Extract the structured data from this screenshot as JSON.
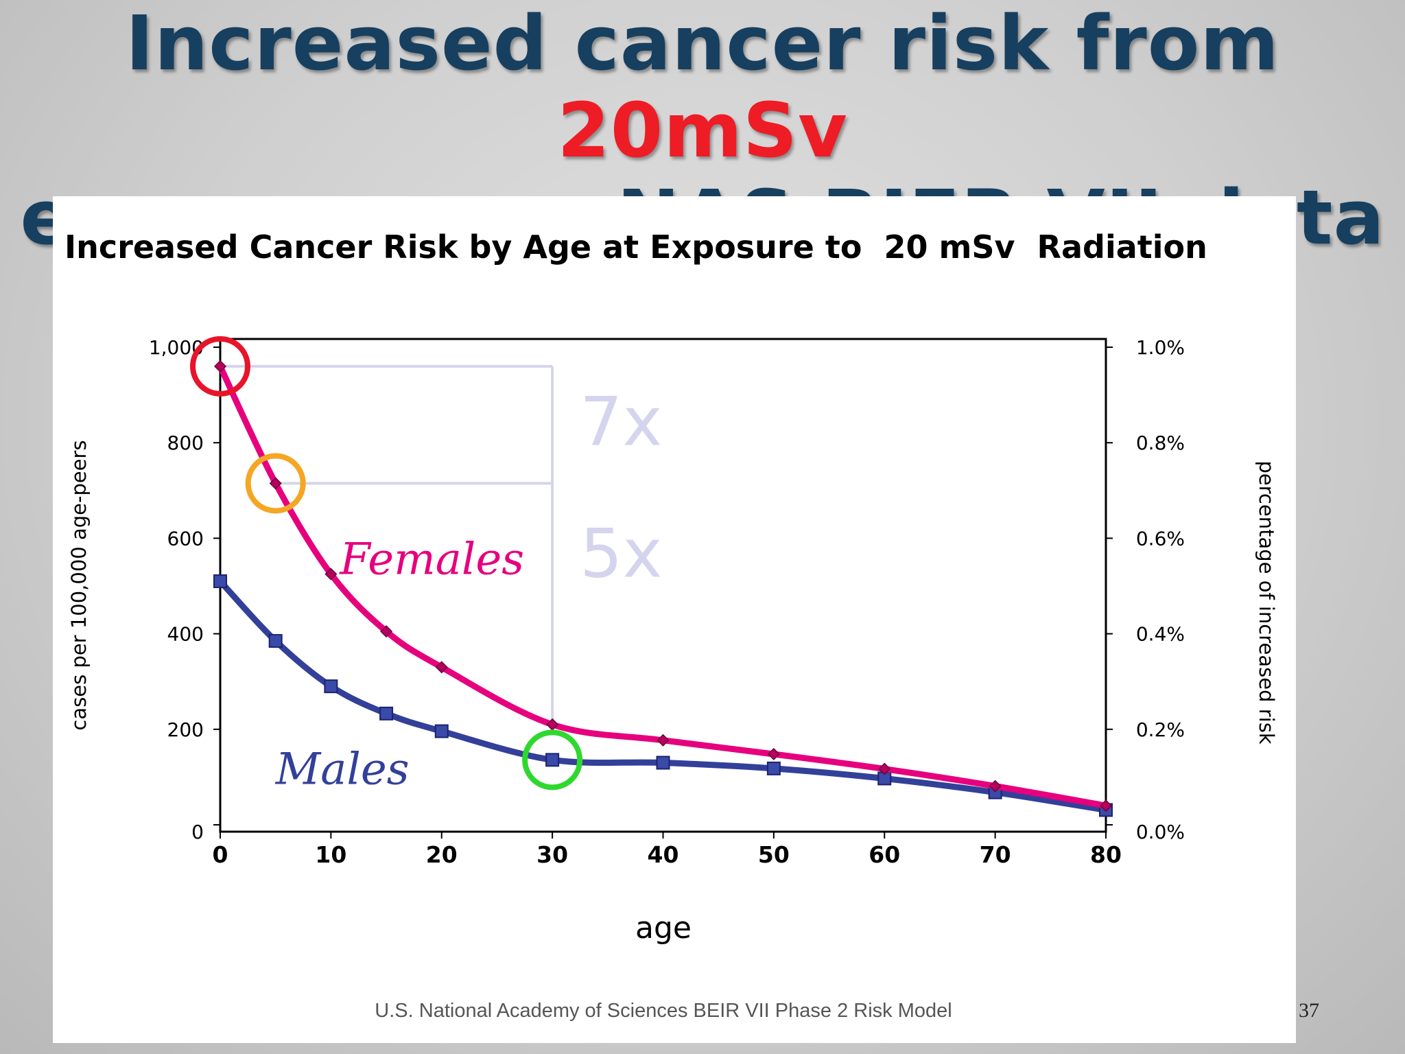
{
  "slide": {
    "title_line1_prefix": "Increased cancer risk from ",
    "title_line1_highlight": "20mSv",
    "title_line2": "exposure per NAS BIER VII data",
    "page_number": "37"
  },
  "chart_data": {
    "type": "line",
    "title": "Increased Cancer Risk by Age at Exposure to  20 mSv  Radiation",
    "xlabel": "age",
    "ylabel": "cases per 100,000 age-peers",
    "ylabel_right": "percentage of increased risk",
    "source": "U.S. National Academy of Sciences BEIR VII Phase 2 Risk Model",
    "xlim": [
      0,
      80
    ],
    "ylim": [
      0,
      1000
    ],
    "x_ticks": [
      "0",
      "10",
      "20",
      "30",
      "40",
      "50",
      "60",
      "70",
      "80"
    ],
    "y_ticks": [
      "0",
      "200",
      "400",
      "600",
      "800",
      "1,000"
    ],
    "y_ticks_right": [
      "0.0%",
      "0.2%",
      "0.4%",
      "0.6%",
      "0.8%",
      "1.0%"
    ],
    "series": [
      {
        "name": "Females",
        "color": "#e6007e",
        "marker": "diamond",
        "x": [
          0,
          5,
          10,
          15,
          20,
          30,
          40,
          50,
          60,
          70,
          80
        ],
        "values": [
          960,
          715,
          525,
          405,
          330,
          210,
          177,
          148,
          117,
          81,
          40
        ]
      },
      {
        "name": "Males",
        "color": "#33409a",
        "marker": "square",
        "x": [
          0,
          5,
          10,
          15,
          20,
          30,
          40,
          50,
          60,
          70,
          80
        ],
        "values": [
          510,
          385,
          290,
          233,
          196,
          136,
          130,
          118,
          97,
          68,
          31
        ]
      }
    ],
    "annotations": [
      {
        "text": "7x",
        "color": "#d4d4ee"
      },
      {
        "text": "5x",
        "color": "#d4d4ee"
      }
    ],
    "highlight_circles": [
      {
        "series": "Females",
        "x": 0,
        "y": 960,
        "color": "#e8142a"
      },
      {
        "series": "Females",
        "x": 5,
        "y": 715,
        "color": "#f5a623"
      },
      {
        "series": "Males",
        "x": 30,
        "y": 136,
        "color": "#2fd82f"
      }
    ]
  }
}
